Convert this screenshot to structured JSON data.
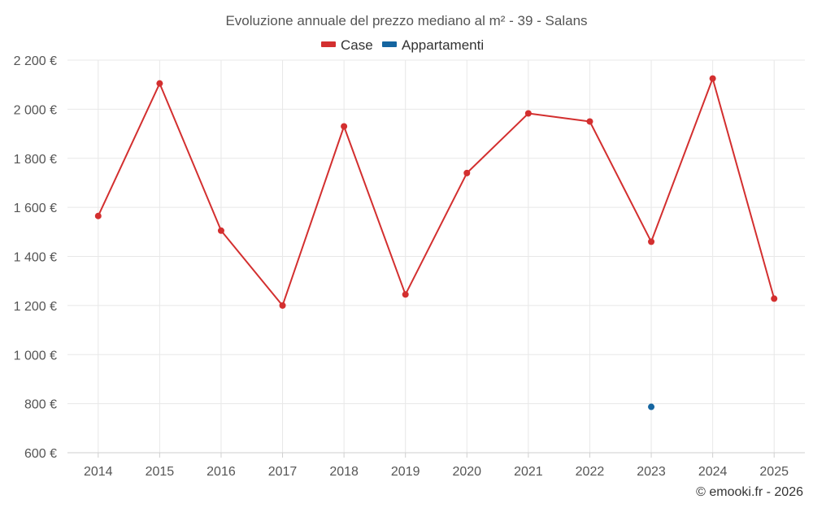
{
  "chart_data": {
    "type": "line",
    "title": "Evoluzione annuale del prezzo mediano al m² - 39 - Salans",
    "categories": [
      "2014",
      "2015",
      "2016",
      "2017",
      "2018",
      "2019",
      "2020",
      "2021",
      "2022",
      "2023",
      "2024",
      "2025"
    ],
    "series": [
      {
        "name": "Case",
        "color": "#d32f2f",
        "values": [
          1565,
          2105,
          1505,
          1200,
          1930,
          1245,
          1740,
          1983,
          1950,
          1460,
          2125,
          1228
        ]
      },
      {
        "name": "Appartamenti",
        "color": "#1565a0",
        "values": [
          null,
          null,
          null,
          null,
          null,
          null,
          null,
          null,
          null,
          787,
          null,
          null
        ]
      }
    ],
    "ylim": [
      600,
      2200
    ],
    "yticks": [
      {
        "value": 600,
        "label": "600 €"
      },
      {
        "value": 800,
        "label": "800 €"
      },
      {
        "value": 1000,
        "label": "1 000 €"
      },
      {
        "value": 1200,
        "label": "1 200 €"
      },
      {
        "value": 1400,
        "label": "1 400 €"
      },
      {
        "value": 1600,
        "label": "1 600 €"
      },
      {
        "value": 1800,
        "label": "1 800 €"
      },
      {
        "value": 2000,
        "label": "2 000 €"
      },
      {
        "value": 2200,
        "label": "2 200 €"
      }
    ],
    "xlabel": "",
    "ylabel": "",
    "grid": true,
    "legend_position": "top-center"
  },
  "copyright": "© emooki.fr - 2026"
}
